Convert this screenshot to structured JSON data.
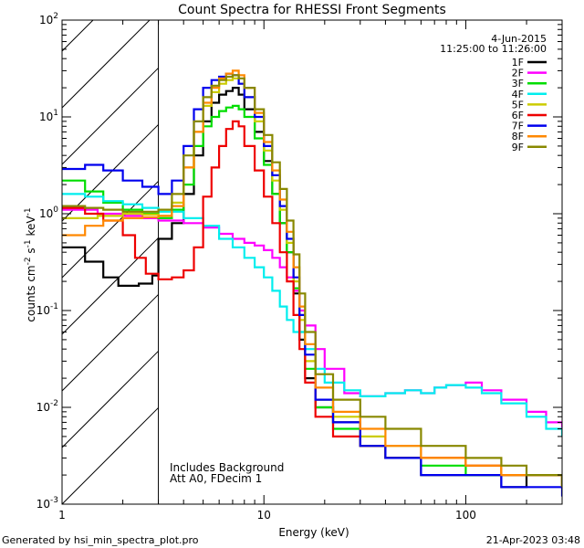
{
  "chart_data": {
    "type": "line",
    "title": "Count Spectra for RHESSI Front Segments",
    "xlabel": "Energy (keV)",
    "ylabel_parts": [
      "counts cm",
      "-2",
      " s",
      "-1",
      " keV",
      "-1"
    ],
    "x_scale": "log",
    "y_scale": "log",
    "xlim": [
      1,
      300
    ],
    "ylim": [
      0.001,
      100
    ],
    "x_ticks": [
      {
        "value": 1,
        "label": "1"
      },
      {
        "value": 10,
        "label": "10"
      },
      {
        "value": 100,
        "label": "100"
      }
    ],
    "y_ticks": [
      {
        "value": 0.001,
        "base": "10",
        "exp": "-3"
      },
      {
        "value": 0.01,
        "base": "10",
        "exp": "-2"
      },
      {
        "value": 0.1,
        "base": "10",
        "exp": "-1"
      },
      {
        "value": 1,
        "base": "10",
        "exp": "0"
      },
      {
        "value": 10,
        "base": "10",
        "exp": "1"
      },
      {
        "value": 100,
        "base": "10",
        "exp": "2"
      }
    ],
    "hatched_region_keV": [
      1,
      3
    ],
    "legend": {
      "date": "4-Jun-2015",
      "time_range": "11:25:00 to 11:26:00",
      "position": "top-right"
    },
    "annotations": [
      "Includes Background",
      "Att A0, FDecim 1"
    ],
    "series": [
      {
        "name": "1F",
        "color": "#000000",
        "points": [
          [
            1.0,
            0.45
          ],
          [
            1.3,
            0.32
          ],
          [
            1.6,
            0.22
          ],
          [
            1.9,
            0.18
          ],
          [
            2.4,
            0.19
          ],
          [
            2.8,
            0.23
          ],
          [
            3.0,
            0.55
          ],
          [
            3.5,
            0.8
          ],
          [
            4.0,
            1.6
          ],
          [
            4.5,
            4
          ],
          [
            5,
            9
          ],
          [
            5.5,
            14
          ],
          [
            6,
            17
          ],
          [
            6.5,
            18.5
          ],
          [
            7,
            20
          ],
          [
            7.5,
            17
          ],
          [
            8,
            12
          ],
          [
            9,
            7
          ],
          [
            10,
            3.5
          ],
          [
            11,
            1.6
          ],
          [
            12,
            0.8
          ],
          [
            13,
            0.4
          ],
          [
            14,
            0.15
          ],
          [
            15,
            0.05
          ],
          [
            16,
            0.02
          ],
          [
            18,
            0.01
          ],
          [
            22,
            0.007
          ],
          [
            30,
            0.004
          ],
          [
            40,
            0.003
          ],
          [
            60,
            0.002
          ],
          [
            100,
            0.002
          ],
          [
            150,
            0.0015
          ],
          [
            200,
            0.002
          ],
          [
            300,
            0.0015
          ]
        ]
      },
      {
        "name": "2F",
        "color": "#ff00ff",
        "points": [
          [
            1.0,
            1.1
          ],
          [
            1.5,
            1.0
          ],
          [
            2,
            0.95
          ],
          [
            2.5,
            0.9
          ],
          [
            3,
            0.85
          ],
          [
            4,
            0.8
          ],
          [
            5,
            0.72
          ],
          [
            6,
            0.62
          ],
          [
            7,
            0.55
          ],
          [
            8,
            0.5
          ],
          [
            9,
            0.47
          ],
          [
            10,
            0.42
          ],
          [
            11,
            0.35
          ],
          [
            12,
            0.28
          ],
          [
            13,
            0.22
          ],
          [
            14,
            0.16
          ],
          [
            15,
            0.1
          ],
          [
            16,
            0.07
          ],
          [
            18,
            0.04
          ],
          [
            20,
            0.025
          ],
          [
            25,
            0.014
          ],
          [
            30,
            0.013
          ],
          [
            40,
            0.014
          ],
          [
            50,
            0.015
          ],
          [
            60,
            0.014
          ],
          [
            70,
            0.016
          ],
          [
            80,
            0.017
          ],
          [
            100,
            0.018
          ],
          [
            120,
            0.015
          ],
          [
            150,
            0.012
          ],
          [
            200,
            0.009
          ],
          [
            250,
            0.007
          ],
          [
            300,
            0.006
          ]
        ]
      },
      {
        "name": "3F",
        "color": "#00dd00",
        "points": [
          [
            1.0,
            2.2
          ],
          [
            1.3,
            1.7
          ],
          [
            1.6,
            1.3
          ],
          [
            2,
            1.1
          ],
          [
            2.5,
            1.0
          ],
          [
            3,
            0.9
          ],
          [
            3.5,
            1.1
          ],
          [
            4,
            2.0
          ],
          [
            4.5,
            5
          ],
          [
            5,
            8
          ],
          [
            5.5,
            10
          ],
          [
            6,
            11.5
          ],
          [
            6.5,
            12.5
          ],
          [
            7,
            13
          ],
          [
            7.5,
            12
          ],
          [
            8,
            10
          ],
          [
            9,
            6
          ],
          [
            10,
            3.2
          ],
          [
            11,
            1.6
          ],
          [
            12,
            0.8
          ],
          [
            13,
            0.4
          ],
          [
            14,
            0.17
          ],
          [
            15,
            0.06
          ],
          [
            16,
            0.025
          ],
          [
            18,
            0.01
          ],
          [
            22,
            0.006
          ],
          [
            30,
            0.004
          ],
          [
            40,
            0.003
          ],
          [
            60,
            0.0025
          ],
          [
            100,
            0.002
          ],
          [
            150,
            0.002
          ],
          [
            200,
            0.002
          ],
          [
            300,
            0.0015
          ]
        ]
      },
      {
        "name": "4F",
        "color": "#00eeee",
        "points": [
          [
            1.0,
            1.6
          ],
          [
            1.3,
            1.5
          ],
          [
            1.6,
            1.35
          ],
          [
            2,
            1.25
          ],
          [
            2.5,
            1.15
          ],
          [
            3,
            1.05
          ],
          [
            4,
            0.9
          ],
          [
            5,
            0.75
          ],
          [
            6,
            0.55
          ],
          [
            7,
            0.45
          ],
          [
            8,
            0.35
          ],
          [
            9,
            0.28
          ],
          [
            10,
            0.22
          ],
          [
            11,
            0.16
          ],
          [
            12,
            0.11
          ],
          [
            13,
            0.08
          ],
          [
            14,
            0.06
          ],
          [
            16,
            0.04
          ],
          [
            18,
            0.025
          ],
          [
            20,
            0.018
          ],
          [
            25,
            0.015
          ],
          [
            30,
            0.013
          ],
          [
            40,
            0.014
          ],
          [
            50,
            0.015
          ],
          [
            60,
            0.014
          ],
          [
            70,
            0.016
          ],
          [
            80,
            0.017
          ],
          [
            100,
            0.016
          ],
          [
            120,
            0.014
          ],
          [
            150,
            0.011
          ],
          [
            200,
            0.008
          ],
          [
            250,
            0.006
          ],
          [
            300,
            0.005
          ]
        ]
      },
      {
        "name": "5F",
        "color": "#cccc00",
        "points": [
          [
            1.0,
            0.9
          ],
          [
            1.5,
            0.95
          ],
          [
            2,
            1.0
          ],
          [
            2.5,
            0.98
          ],
          [
            3,
            0.95
          ],
          [
            3.5,
            1.3
          ],
          [
            4,
            3
          ],
          [
            4.5,
            7
          ],
          [
            5,
            13
          ],
          [
            5.5,
            18
          ],
          [
            6,
            22
          ],
          [
            6.5,
            24
          ],
          [
            7,
            25
          ],
          [
            7.5,
            22
          ],
          [
            8,
            16
          ],
          [
            9,
            9
          ],
          [
            10,
            4.5
          ],
          [
            11,
            2.2
          ],
          [
            12,
            1.1
          ],
          [
            13,
            0.5
          ],
          [
            14,
            0.2
          ],
          [
            15,
            0.08
          ],
          [
            16,
            0.03
          ],
          [
            18,
            0.012
          ],
          [
            22,
            0.008
          ],
          [
            30,
            0.005
          ],
          [
            40,
            0.004
          ],
          [
            60,
            0.003
          ],
          [
            100,
            0.0025
          ],
          [
            150,
            0.002
          ],
          [
            200,
            0.002
          ],
          [
            300,
            0.0015
          ]
        ]
      },
      {
        "name": "6F",
        "color": "#ee0000",
        "points": [
          [
            1.0,
            1.15
          ],
          [
            1.3,
            1.0
          ],
          [
            1.6,
            0.85
          ],
          [
            2,
            0.6
          ],
          [
            2.3,
            0.35
          ],
          [
            2.6,
            0.24
          ],
          [
            3,
            0.21
          ],
          [
            3.5,
            0.22
          ],
          [
            4,
            0.26
          ],
          [
            4.5,
            0.45
          ],
          [
            5,
            1.5
          ],
          [
            5.5,
            3
          ],
          [
            6,
            5
          ],
          [
            6.5,
            7.5
          ],
          [
            7,
            9
          ],
          [
            7.5,
            8
          ],
          [
            8,
            5
          ],
          [
            9,
            2.8
          ],
          [
            10,
            1.5
          ],
          [
            11,
            0.8
          ],
          [
            12,
            0.4
          ],
          [
            13,
            0.2
          ],
          [
            14,
            0.09
          ],
          [
            15,
            0.04
          ],
          [
            16,
            0.018
          ],
          [
            18,
            0.008
          ],
          [
            22,
            0.005
          ],
          [
            30,
            0.004
          ],
          [
            40,
            0.003
          ],
          [
            60,
            0.003
          ],
          [
            100,
            0.0025
          ],
          [
            150,
            0.002
          ],
          [
            200,
            0.002
          ],
          [
            300,
            0.0015
          ]
        ]
      },
      {
        "name": "7F",
        "color": "#0000ee",
        "points": [
          [
            1.0,
            2.9
          ],
          [
            1.3,
            3.2
          ],
          [
            1.6,
            2.8
          ],
          [
            2,
            2.2
          ],
          [
            2.5,
            1.9
          ],
          [
            3,
            1.6
          ],
          [
            3.5,
            2.2
          ],
          [
            4,
            5
          ],
          [
            4.5,
            12
          ],
          [
            5,
            20
          ],
          [
            5.5,
            24
          ],
          [
            6,
            26
          ],
          [
            6.5,
            28
          ],
          [
            7,
            27
          ],
          [
            7.5,
            22
          ],
          [
            8,
            16
          ],
          [
            9,
            10
          ],
          [
            10,
            5
          ],
          [
            11,
            2.5
          ],
          [
            12,
            1.2
          ],
          [
            13,
            0.55
          ],
          [
            14,
            0.22
          ],
          [
            15,
            0.09
          ],
          [
            16,
            0.035
          ],
          [
            18,
            0.012
          ],
          [
            22,
            0.007
          ],
          [
            30,
            0.004
          ],
          [
            40,
            0.003
          ],
          [
            60,
            0.002
          ],
          [
            100,
            0.002
          ],
          [
            150,
            0.0015
          ],
          [
            200,
            0.0015
          ],
          [
            300,
            0.0012
          ]
        ]
      },
      {
        "name": "8F",
        "color": "#ff8800",
        "points": [
          [
            1.0,
            0.6
          ],
          [
            1.3,
            0.75
          ],
          [
            1.6,
            0.85
          ],
          [
            2,
            0.9
          ],
          [
            2.5,
            0.92
          ],
          [
            3,
            0.95
          ],
          [
            3.5,
            1.2
          ],
          [
            4,
            3
          ],
          [
            4.5,
            7
          ],
          [
            5,
            14
          ],
          [
            5.5,
            20
          ],
          [
            6,
            25
          ],
          [
            6.5,
            28
          ],
          [
            7,
            30
          ],
          [
            7.5,
            27
          ],
          [
            8,
            20
          ],
          [
            9,
            11
          ],
          [
            10,
            5.5
          ],
          [
            11,
            2.8
          ],
          [
            12,
            1.4
          ],
          [
            13,
            0.65
          ],
          [
            14,
            0.28
          ],
          [
            15,
            0.11
          ],
          [
            16,
            0.045
          ],
          [
            18,
            0.016
          ],
          [
            22,
            0.009
          ],
          [
            30,
            0.006
          ],
          [
            40,
            0.004
          ],
          [
            60,
            0.003
          ],
          [
            100,
            0.0025
          ],
          [
            150,
            0.002
          ],
          [
            200,
            0.002
          ],
          [
            300,
            0.0015
          ]
        ]
      },
      {
        "name": "9F",
        "color": "#888800",
        "points": [
          [
            1.0,
            1.2
          ],
          [
            1.3,
            1.15
          ],
          [
            1.6,
            1.1
          ],
          [
            2,
            1.05
          ],
          [
            2.5,
            1.05
          ],
          [
            3,
            1.1
          ],
          [
            3.5,
            1.6
          ],
          [
            4,
            4
          ],
          [
            4.5,
            9
          ],
          [
            5,
            16
          ],
          [
            5.5,
            21
          ],
          [
            6,
            24
          ],
          [
            6.5,
            26
          ],
          [
            7,
            27
          ],
          [
            7.5,
            25
          ],
          [
            8,
            20
          ],
          [
            9,
            12
          ],
          [
            10,
            6.5
          ],
          [
            11,
            3.4
          ],
          [
            12,
            1.8
          ],
          [
            13,
            0.85
          ],
          [
            14,
            0.38
          ],
          [
            15,
            0.15
          ],
          [
            16,
            0.06
          ],
          [
            18,
            0.022
          ],
          [
            22,
            0.012
          ],
          [
            30,
            0.008
          ],
          [
            40,
            0.006
          ],
          [
            60,
            0.004
          ],
          [
            100,
            0.003
          ],
          [
            150,
            0.0025
          ],
          [
            200,
            0.002
          ],
          [
            300,
            0.0015
          ]
        ]
      }
    ]
  },
  "footer": {
    "left": "Generated by hsi_min_spectra_plot.pro",
    "right": "21-Apr-2023 03:48"
  }
}
